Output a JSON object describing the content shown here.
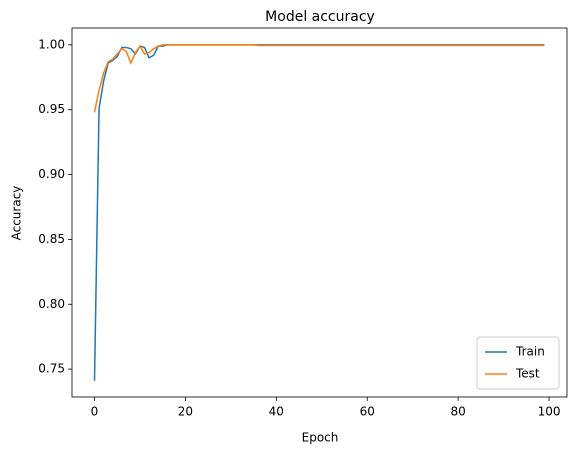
{
  "chart_data": {
    "type": "line",
    "title": "Model accuracy",
    "xlabel": "Epoch",
    "ylabel": "Accuracy",
    "x": [
      0,
      1,
      2,
      3,
      4,
      5,
      6,
      7,
      8,
      9,
      10,
      11,
      12,
      13,
      14,
      15,
      16,
      17,
      18,
      19,
      20,
      21,
      22,
      23,
      24,
      25,
      26,
      27,
      28,
      29,
      30,
      31,
      32,
      33,
      34,
      35,
      36,
      37,
      38,
      39,
      40,
      41,
      42,
      43,
      44,
      45,
      46,
      47,
      48,
      49,
      50,
      51,
      52,
      53,
      54,
      55,
      56,
      57,
      58,
      59,
      60,
      61,
      62,
      63,
      64,
      65,
      66,
      67,
      68,
      69,
      70,
      71,
      72,
      73,
      74,
      75,
      76,
      77,
      78,
      79,
      80,
      81,
      82,
      83,
      84,
      85,
      86,
      87,
      88,
      89,
      90,
      91,
      92,
      93,
      94,
      95,
      96,
      97,
      98,
      99
    ],
    "series": [
      {
        "name": "Train",
        "color": "#1f77b4",
        "values": [
          0.741,
          0.951,
          0.972,
          0.986,
          0.988,
          0.991,
          0.998,
          0.998,
          0.997,
          0.993,
          0.999,
          0.998,
          0.99,
          0.992,
          0.999,
          0.999,
          1,
          1,
          1,
          1,
          1,
          1,
          1,
          1,
          1,
          1,
          1,
          1,
          1,
          1,
          1,
          1,
          1,
          1,
          1,
          1,
          1,
          1,
          1,
          1,
          1,
          1,
          1,
          1,
          1,
          1,
          1,
          1,
          1,
          1,
          1,
          1,
          1,
          1,
          1,
          1,
          1,
          1,
          1,
          1,
          1,
          1,
          1,
          1,
          1,
          1,
          1,
          1,
          1,
          1,
          1,
          1,
          1,
          1,
          1,
          1,
          1,
          1,
          1,
          1,
          1,
          1,
          1,
          1,
          1,
          1,
          1,
          1,
          1,
          1,
          1,
          1,
          1,
          1,
          1,
          1,
          1,
          1,
          1,
          1
        ]
      },
      {
        "name": "Test",
        "color": "#ff7f0e",
        "values": [
          0.948,
          0.965,
          0.978,
          0.987,
          0.989,
          0.993,
          0.997,
          0.995,
          0.986,
          0.994,
          0.999,
          0.993,
          0.994,
          0.997,
          0.999,
          1,
          1,
          1,
          1,
          1,
          1,
          1,
          1,
          1,
          1,
          1,
          1,
          1,
          1,
          1,
          1,
          1,
          1,
          1,
          1,
          1,
          0.9995,
          0.9995,
          0.9995,
          0.9995,
          0.9995,
          0.9995,
          0.9995,
          0.9995,
          0.9995,
          0.9995,
          0.9995,
          0.9995,
          0.9995,
          0.9995,
          0.9995,
          0.9995,
          0.9995,
          0.9995,
          0.9995,
          0.9995,
          0.9995,
          0.9995,
          0.9995,
          0.9995,
          0.9995,
          0.9995,
          0.9995,
          0.9995,
          0.9995,
          0.9995,
          0.9995,
          0.9995,
          0.9995,
          0.9995,
          0.9995,
          0.9995,
          0.9995,
          0.9995,
          0.9995,
          0.9995,
          0.9995,
          0.9995,
          0.9995,
          0.9995,
          0.9995,
          0.9995,
          0.9995,
          0.9995,
          0.9995,
          0.9995,
          0.9995,
          0.9995,
          0.9995,
          0.9995,
          0.9995,
          0.9995,
          0.9995,
          0.9995,
          0.9995,
          0.9995,
          0.9995,
          0.9995,
          0.9995,
          0.9995
        ]
      }
    ],
    "xlim": [
      -4.95,
      103.95
    ],
    "xticks": [
      0,
      20,
      40,
      60,
      80,
      100
    ],
    "ylim": [
      0.7285,
      1.013
    ],
    "yticks": [
      {
        "value": 0.75,
        "label": "0.75"
      },
      {
        "value": 0.8,
        "label": "0.80"
      },
      {
        "value": 0.85,
        "label": "0.85"
      },
      {
        "value": 0.9,
        "label": "0.90"
      },
      {
        "value": 0.95,
        "label": "0.95"
      },
      {
        "value": 1.0,
        "label": "1.00"
      }
    ],
    "legend": "lower right",
    "grid": false
  }
}
